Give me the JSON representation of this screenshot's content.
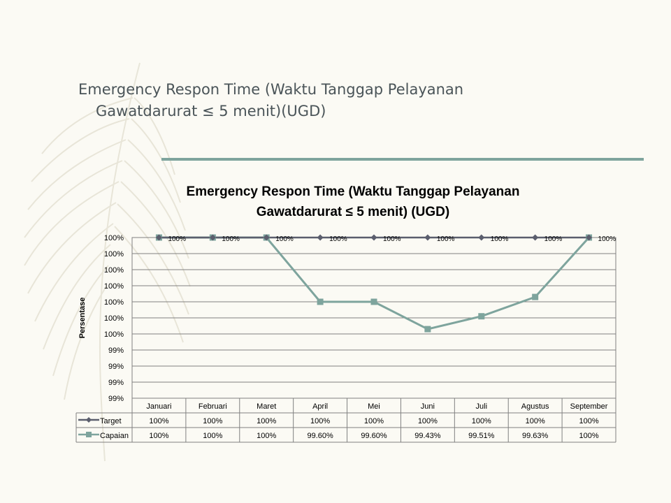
{
  "slide": {
    "title_line1": "Emergency Respon Time (Waktu Tanggap Pelayanan",
    "title_line2": "Gawatdarurat ≤ 5 menit)(UGD)",
    "accent_color": "#7ea49d",
    "background_color": "#fbfaf4",
    "decoration": "feather-leaf"
  },
  "chart_data": {
    "type": "line",
    "title_line1": "Emergency Respon Time (Waktu Tanggap Pelayanan",
    "title_line2": "Gawatdarurat ≤ 5 menit)  (UGD)",
    "ylabel": "Persentase",
    "xlabel": "",
    "categories": [
      "Januari",
      "Februari",
      "Maret",
      "April",
      "Mei",
      "Juni",
      "Juli",
      "Agustus",
      "September"
    ],
    "ylim": [
      99.0,
      100.0
    ],
    "y_tick_labels": [
      "100%",
      "100%",
      "100%",
      "100%",
      "100%",
      "100%",
      "100%",
      "99%",
      "99%",
      "99%",
      "99%"
    ],
    "grid": true,
    "legend": "data-table",
    "series": [
      {
        "name": "Target",
        "color": "#5b5e6d",
        "marker": "diamond",
        "values": [
          100,
          100,
          100,
          100,
          100,
          100,
          100,
          100,
          100
        ],
        "value_labels": [
          "100%",
          "100%",
          "100%",
          "100%",
          "100%",
          "100%",
          "100%",
          "100%",
          "100%"
        ],
        "table_labels": [
          "100%",
          "100%",
          "100%",
          "100%",
          "100%",
          "100%",
          "100%",
          "100%",
          "100%"
        ]
      },
      {
        "name": "Capaian",
        "color": "#7ea49d",
        "marker": "square",
        "values": [
          100,
          100,
          100,
          99.6,
          99.6,
          99.43,
          99.51,
          99.63,
          100
        ],
        "value_labels": [
          "100%",
          "100%",
          "100%",
          "",
          "",
          "",
          "",
          "",
          "100%"
        ],
        "table_labels": [
          "100%",
          "100%",
          "100%",
          "99.60%",
          "99.60%",
          "99.43%",
          "99.51%",
          "99.63%",
          "100%"
        ]
      }
    ]
  }
}
